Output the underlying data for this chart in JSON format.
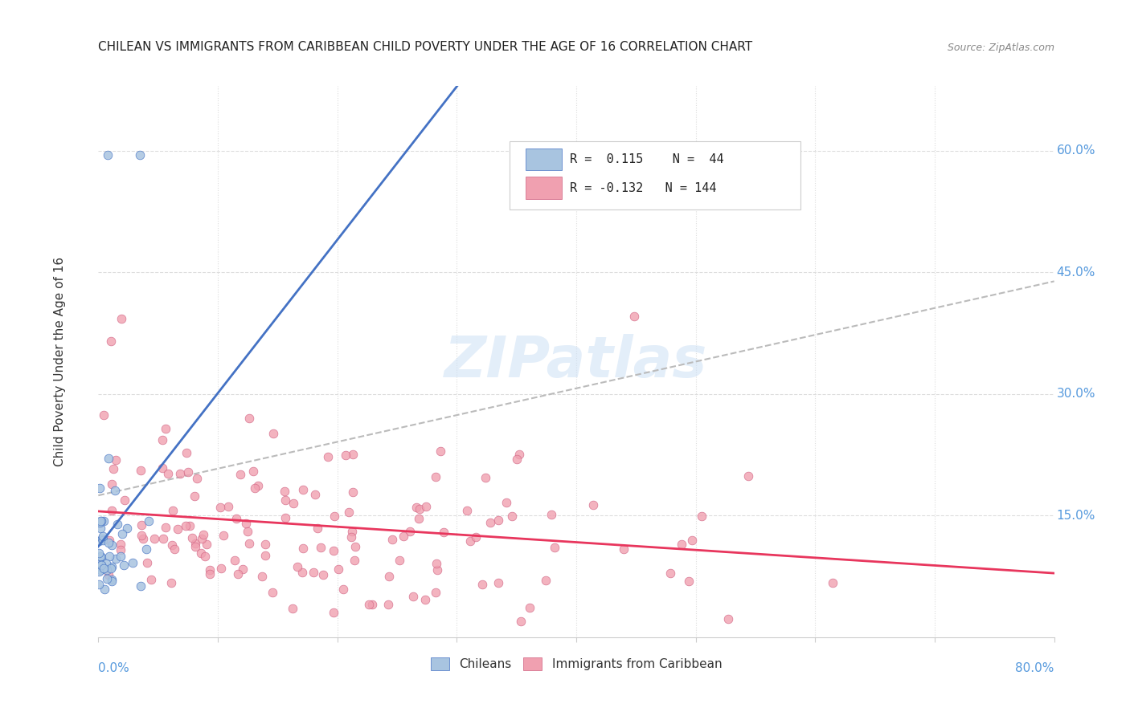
{
  "title": "CHILEAN VS IMMIGRANTS FROM CARIBBEAN CHILD POVERTY UNDER THE AGE OF 16 CORRELATION CHART",
  "source": "Source: ZipAtlas.com",
  "ylabel": "Child Poverty Under the Age of 16",
  "ytick_labels": [
    "15.0%",
    "30.0%",
    "45.0%",
    "60.0%"
  ],
  "ytick_values": [
    0.15,
    0.3,
    0.45,
    0.6
  ],
  "xlim": [
    0.0,
    0.8
  ],
  "ylim": [
    0.0,
    0.68
  ],
  "color_chilean": "#a8c4e0",
  "color_caribbean": "#f0a0b0",
  "color_trend_chilean": "#4472C4",
  "color_trend_caribbean": "#E8365D",
  "color_trend_dashed": "#bbbbbb",
  "watermark_text": "ZIPatlas"
}
